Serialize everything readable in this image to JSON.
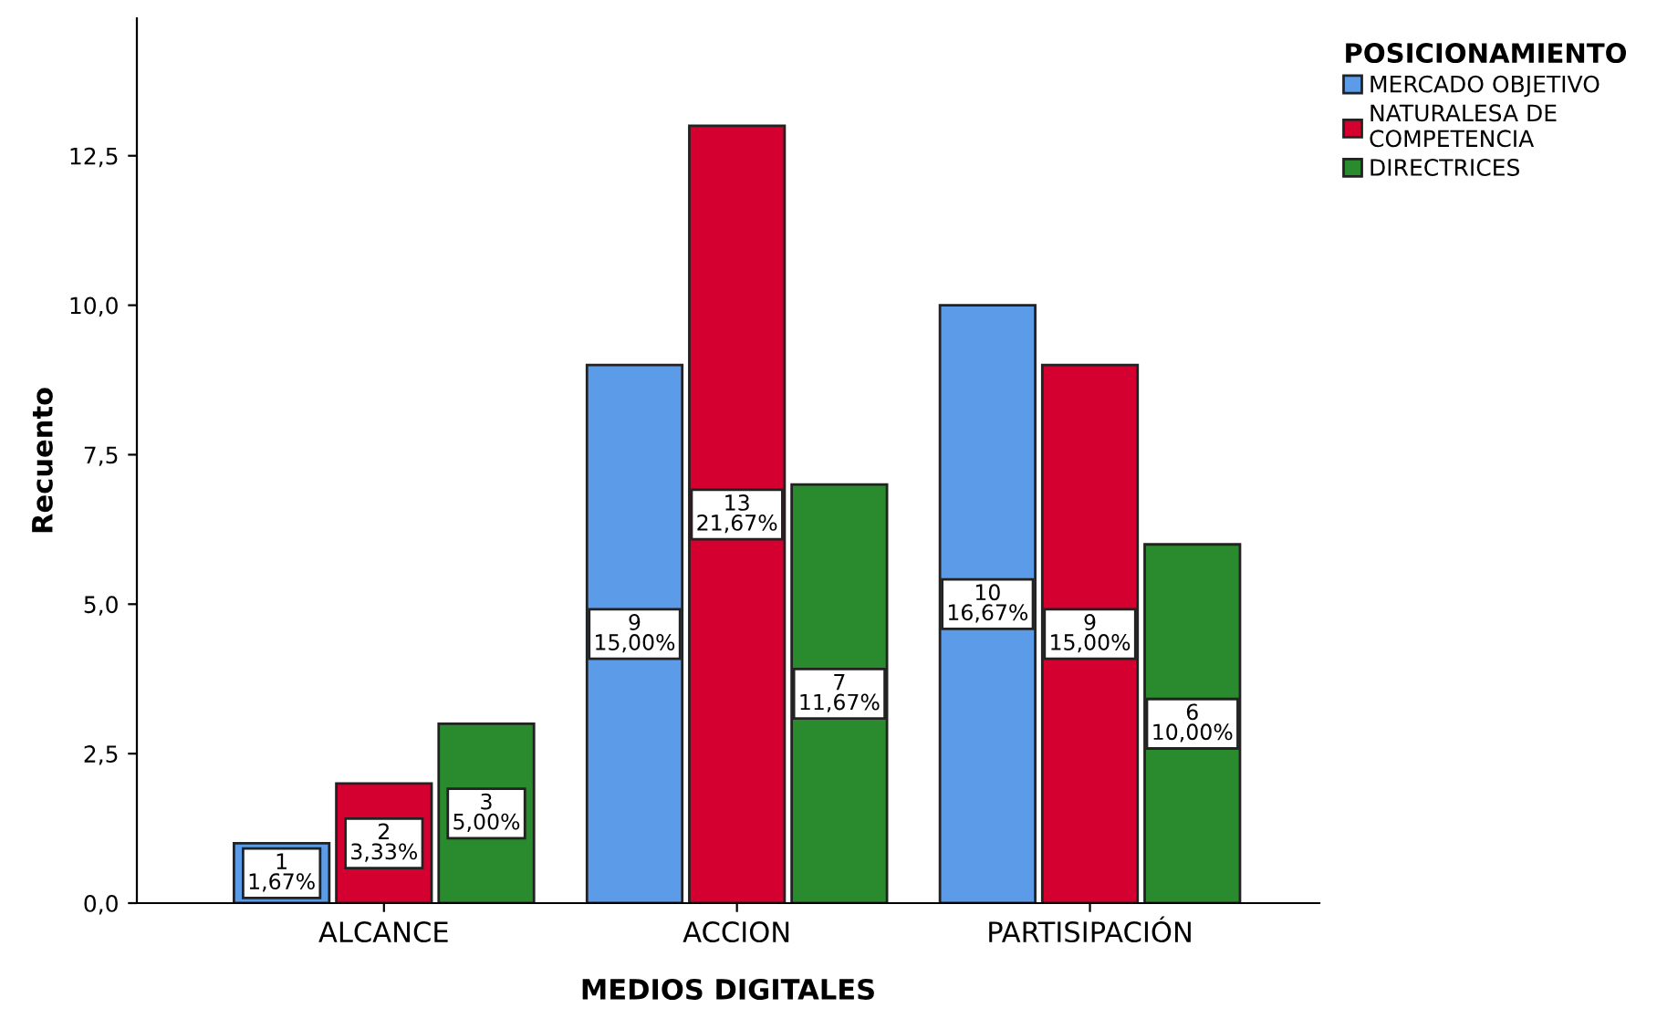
{
  "chart_data": {
    "type": "bar",
    "xlabel": "MEDIOS DIGITALES",
    "ylabel": "Recuento",
    "legend_title": "POSICIONAMIENTO",
    "legend": "top right",
    "categories": [
      "ALCANCE",
      "ACCION",
      "PARTISIPACIÓN"
    ],
    "series": [
      {
        "name": "MERCADO OBJETIVO",
        "color": "#5b9be8",
        "values": [
          1,
          9,
          10
        ],
        "value_labels": [
          "1\n1,67%",
          "9\n15,00%",
          "10\n16,67%"
        ]
      },
      {
        "name": "NATURALESA DE\nCOMPETENCIA",
        "color": "#d40030",
        "values": [
          2,
          13,
          9
        ],
        "value_labels": [
          "2\n3,33%",
          "13\n21,67%",
          "9\n15,00%"
        ]
      },
      {
        "name": "DIRECTRICES",
        "color": "#2a8a2e",
        "values": [
          3,
          7,
          6
        ],
        "value_labels": [
          "3\n5,00%",
          "7\n11,67%",
          "6\n10,00%"
        ]
      }
    ],
    "ylim": [
      0,
      14.8
    ],
    "yticks": [
      {
        "value": 0,
        "label": "0,0"
      },
      {
        "value": 2.5,
        "label": "2,5"
      },
      {
        "value": 5,
        "label": "5,0"
      },
      {
        "value": 7.5,
        "label": "7,5"
      },
      {
        "value": 10,
        "label": "10,0"
      },
      {
        "value": 12.5,
        "label": "12,5"
      }
    ],
    "grid": false
  }
}
